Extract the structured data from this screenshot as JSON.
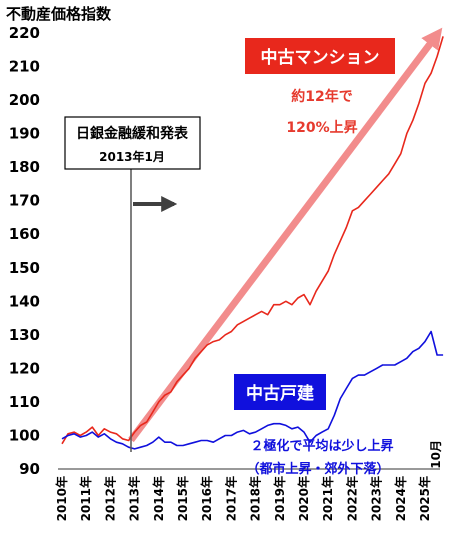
{
  "chart_data": {
    "type": "line",
    "title": "不動産価格指数",
    "ylim": [
      90,
      220
    ],
    "y_ticks": [
      90,
      100,
      110,
      120,
      130,
      140,
      150,
      160,
      170,
      180,
      190,
      200,
      210,
      220
    ],
    "x_ticks": [
      "2010年",
      "2011年",
      "2012年",
      "2013年",
      "2014年",
      "2015年",
      "2016年",
      "2017年",
      "2018年",
      "2019年",
      "2020年",
      "2021年",
      "2022年",
      "2023年",
      "2024年",
      "2025年"
    ],
    "x_end_label": "10月",
    "grid": false,
    "series": [
      {
        "name": "中古マンション",
        "color": "#e8281c",
        "points": [
          [
            2010.0,
            97.5
          ],
          [
            2010.25,
            100.5
          ],
          [
            2010.5,
            101
          ],
          [
            2010.75,
            100
          ],
          [
            2011.0,
            101
          ],
          [
            2011.25,
            102.5
          ],
          [
            2011.5,
            100
          ],
          [
            2011.75,
            102
          ],
          [
            2012.0,
            101
          ],
          [
            2012.25,
            100.5
          ],
          [
            2012.5,
            99
          ],
          [
            2012.75,
            98.5
          ],
          [
            2013.0,
            101
          ],
          [
            2013.25,
            103
          ],
          [
            2013.5,
            104
          ],
          [
            2013.75,
            107
          ],
          [
            2014.0,
            110
          ],
          [
            2014.25,
            112
          ],
          [
            2014.5,
            113
          ],
          [
            2014.75,
            116
          ],
          [
            2015.0,
            118
          ],
          [
            2015.25,
            120
          ],
          [
            2015.5,
            123
          ],
          [
            2015.75,
            125
          ],
          [
            2016.0,
            127
          ],
          [
            2016.25,
            128
          ],
          [
            2016.5,
            128.5
          ],
          [
            2016.75,
            130
          ],
          [
            2017.0,
            131
          ],
          [
            2017.25,
            133
          ],
          [
            2017.5,
            134
          ],
          [
            2017.75,
            135
          ],
          [
            2018.0,
            136
          ],
          [
            2018.25,
            137
          ],
          [
            2018.5,
            136
          ],
          [
            2018.75,
            139
          ],
          [
            2019.0,
            139
          ],
          [
            2019.25,
            140
          ],
          [
            2019.5,
            139
          ],
          [
            2019.75,
            141
          ],
          [
            2020.0,
            142
          ],
          [
            2020.25,
            139
          ],
          [
            2020.5,
            143
          ],
          [
            2020.75,
            146
          ],
          [
            2021.0,
            149
          ],
          [
            2021.25,
            154
          ],
          [
            2021.5,
            158
          ],
          [
            2021.75,
            162
          ],
          [
            2022.0,
            167
          ],
          [
            2022.25,
            168
          ],
          [
            2022.5,
            170
          ],
          [
            2022.75,
            172
          ],
          [
            2023.0,
            174
          ],
          [
            2023.25,
            176
          ],
          [
            2023.5,
            178
          ],
          [
            2023.75,
            181
          ],
          [
            2024.0,
            184
          ],
          [
            2024.25,
            190
          ],
          [
            2024.5,
            194
          ],
          [
            2024.75,
            199
          ],
          [
            2025.0,
            205
          ],
          [
            2025.25,
            208
          ],
          [
            2025.5,
            213
          ],
          [
            2025.75,
            219
          ]
        ]
      },
      {
        "name": "中古戸建",
        "color": "#1010dd",
        "points": [
          [
            2010.0,
            99
          ],
          [
            2010.25,
            100
          ],
          [
            2010.5,
            100.5
          ],
          [
            2010.75,
            99.5
          ],
          [
            2011.0,
            100
          ],
          [
            2011.25,
            101
          ],
          [
            2011.5,
            99.5
          ],
          [
            2011.75,
            100.5
          ],
          [
            2012.0,
            99
          ],
          [
            2012.25,
            98
          ],
          [
            2012.5,
            97.5
          ],
          [
            2012.75,
            96.5
          ],
          [
            2013.0,
            96
          ],
          [
            2013.25,
            96.5
          ],
          [
            2013.5,
            97
          ],
          [
            2013.75,
            98
          ],
          [
            2014.0,
            99.5
          ],
          [
            2014.25,
            98
          ],
          [
            2014.5,
            98
          ],
          [
            2014.75,
            97
          ],
          [
            2015.0,
            97
          ],
          [
            2015.25,
            97.5
          ],
          [
            2015.5,
            98
          ],
          [
            2015.75,
            98.5
          ],
          [
            2016.0,
            98.5
          ],
          [
            2016.25,
            98
          ],
          [
            2016.5,
            99
          ],
          [
            2016.75,
            100
          ],
          [
            2017.0,
            100
          ],
          [
            2017.25,
            101
          ],
          [
            2017.5,
            101.5
          ],
          [
            2017.75,
            100.5
          ],
          [
            2018.0,
            101
          ],
          [
            2018.25,
            102
          ],
          [
            2018.5,
            103
          ],
          [
            2018.75,
            103.5
          ],
          [
            2019.0,
            103.5
          ],
          [
            2019.25,
            103
          ],
          [
            2019.5,
            102
          ],
          [
            2019.75,
            102.5
          ],
          [
            2020.0,
            101
          ],
          [
            2020.25,
            98
          ],
          [
            2020.5,
            100
          ],
          [
            2020.75,
            101
          ],
          [
            2021.0,
            102
          ],
          [
            2021.25,
            106
          ],
          [
            2021.5,
            111
          ],
          [
            2021.75,
            114
          ],
          [
            2022.0,
            117
          ],
          [
            2022.25,
            118
          ],
          [
            2022.5,
            118
          ],
          [
            2022.75,
            119
          ],
          [
            2023.0,
            120
          ],
          [
            2023.25,
            121
          ],
          [
            2023.5,
            121
          ],
          [
            2023.75,
            121
          ],
          [
            2024.0,
            122
          ],
          [
            2024.25,
            123
          ],
          [
            2024.5,
            125
          ],
          [
            2024.75,
            126
          ],
          [
            2025.0,
            128
          ],
          [
            2025.25,
            131
          ],
          [
            2025.5,
            124
          ],
          [
            2025.75,
            124
          ]
        ]
      }
    ],
    "annotations": {
      "policy_box_line1": "日銀金融緩和発表",
      "policy_box_line2": "2013年1月",
      "condo_label": "中古マンション",
      "condo_note_line1": "約12年で",
      "condo_note_line2": "120%上昇",
      "house_label": "中古戸建",
      "house_note_line1": "２極化で平均は少し上昇",
      "house_note_line2": "（都市上昇・郊外下落）"
    }
  }
}
